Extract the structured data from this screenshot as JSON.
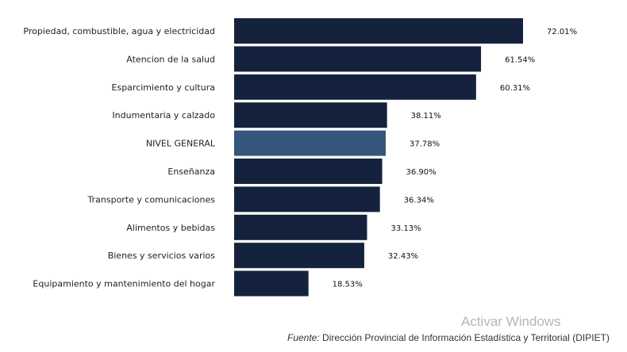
{
  "chart_data": {
    "type": "bar",
    "orientation": "horizontal",
    "categories": [
      "Propiedad, combustible, agua y electricidad",
      "Atencion de la salud",
      "Esparcimiento y cultura",
      "Indumentaria y calzado",
      "NIVEL GENERAL",
      "Enseñanza",
      "Transporte y comunicaciones",
      "Alimentos y bebidas",
      "Bienes y servicios varios",
      "Equipamiento y mantenimiento del hogar"
    ],
    "values": [
      72.01,
      61.54,
      60.31,
      38.11,
      37.78,
      36.9,
      36.34,
      33.13,
      32.43,
      18.53
    ],
    "data_labels": [
      "72.01%",
      "61.54%",
      "60.31%",
      "38.11%",
      "37.78%",
      "36.90%",
      "36.34%",
      "33.13%",
      "32.43%",
      "18.53%"
    ],
    "highlight": "NIVEL GENERAL",
    "colors": {
      "bar": "#15223d",
      "highlight": "#34567a"
    },
    "grid": false,
    "xlim": [
      0,
      75
    ]
  },
  "source": {
    "prefix": "Fuente:",
    "text": " Dirección Provincial de Información Estadística y Territorial (DIPIET)"
  },
  "watermark": "Activar Windows"
}
